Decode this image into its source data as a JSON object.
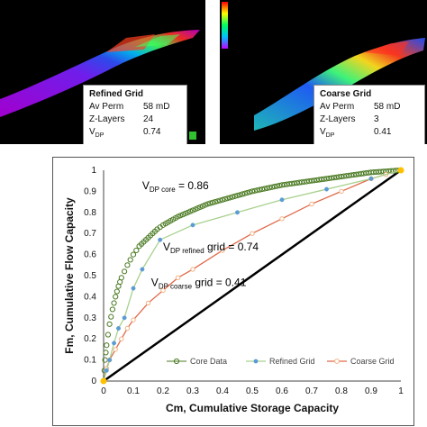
{
  "panels": {
    "refined": {
      "title": "Refined Grid",
      "rows": [
        {
          "k": "Av Perm",
          "v": "58 mD"
        },
        {
          "k": "Z-Layers",
          "v": "24"
        },
        {
          "k": "V",
          "sub": "DP",
          "v": "0.74"
        }
      ]
    },
    "coarse": {
      "title": "Coarse Grid",
      "rows": [
        {
          "k": "Av Perm",
          "v": "58 mD"
        },
        {
          "k": "Z-Layers",
          "v": "3"
        },
        {
          "k": "V",
          "sub": "DP",
          "v": "0.41"
        }
      ]
    }
  },
  "chart_data": {
    "type": "line",
    "xlabel": "Cm, Cumulative Storage Capacity",
    "ylabel": "Fm, Cumulative Flow Capacity",
    "xlim": [
      0,
      1
    ],
    "ylim": [
      0,
      1
    ],
    "xticks": [
      "0",
      "0.1",
      "0.2",
      "0.3",
      "0.4",
      "0.5",
      "0.6",
      "0.7",
      "0.8",
      "0.9",
      "1"
    ],
    "yticks": [
      "0",
      "0.1",
      "0.2",
      "0.3",
      "0.4",
      "0.5",
      "0.6",
      "0.7",
      "0.8",
      "0.9",
      "1"
    ],
    "grid": false,
    "legend": "bottom",
    "colors": {
      "core": "#4a7a22",
      "refined": "#5b9bd5",
      "refined_line": "#a9d18e",
      "coarse": "#e06a4a",
      "coarse_marker": "#f4b183",
      "diagonal": "#000000",
      "endpoint": "#ffc000"
    },
    "series": [
      {
        "name": "Core Data",
        "x": [
          0,
          0.005,
          0.01,
          0.02,
          0.03,
          0.04,
          0.05,
          0.06,
          0.08,
          0.1,
          0.12,
          0.15,
          0.18,
          0.2,
          0.25,
          0.3,
          0.35,
          0.4,
          0.5,
          0.6,
          0.7,
          0.8,
          0.9,
          1.0
        ],
        "y": [
          0,
          0.1,
          0.17,
          0.27,
          0.34,
          0.4,
          0.45,
          0.49,
          0.55,
          0.6,
          0.64,
          0.68,
          0.72,
          0.74,
          0.78,
          0.81,
          0.84,
          0.86,
          0.9,
          0.93,
          0.95,
          0.97,
          0.99,
          1.0
        ]
      },
      {
        "name": "Refined Grid",
        "x": [
          0,
          0.01,
          0.02,
          0.035,
          0.05,
          0.07,
          0.1,
          0.13,
          0.19,
          0.3,
          0.45,
          0.6,
          0.75,
          0.9,
          1.0
        ],
        "y": [
          0,
          0.05,
          0.1,
          0.18,
          0.25,
          0.3,
          0.44,
          0.53,
          0.67,
          0.74,
          0.8,
          0.86,
          0.91,
          0.96,
          1.0
        ]
      },
      {
        "name": "Coarse Grid",
        "x": [
          0,
          0.01,
          0.02,
          0.04,
          0.06,
          0.08,
          0.1,
          0.15,
          0.2,
          0.25,
          0.3,
          0.4,
          0.5,
          0.6,
          0.7,
          0.8,
          0.9,
          0.95,
          1.0
        ],
        "y": [
          0,
          0.06,
          0.1,
          0.15,
          0.2,
          0.25,
          0.29,
          0.37,
          0.43,
          0.49,
          0.53,
          0.62,
          0.7,
          0.77,
          0.84,
          0.9,
          0.96,
          0.98,
          1.0
        ]
      }
    ],
    "annotations": [
      {
        "text": "V",
        "sub": "DP core",
        "tail": " = 0.86",
        "x": 0.13,
        "y": 0.91
      },
      {
        "text": "V",
        "sub": "DP refined",
        "tail": " grid  = 0.74",
        "x": 0.2,
        "y": 0.62
      },
      {
        "text": "V",
        "sub": "DP coarse",
        "tail": " grid  = 0.41",
        "x": 0.16,
        "y": 0.45
      }
    ]
  }
}
